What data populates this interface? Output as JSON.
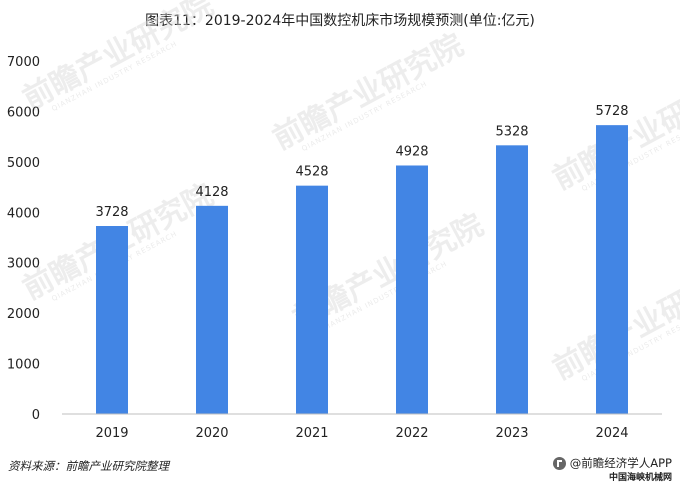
{
  "title": "图表11：2019-2024年中国数控机床市场规模预测(单位:亿元)",
  "footer": {
    "source": "资料来源：前瞻产业研究院整理",
    "brand": "@前瞻经济学人APP",
    "sub": "中国海峡机械网"
  },
  "watermark": {
    "text": "前瞻产业研究院",
    "sub": "QIANZHAN INDUSTRY RESEARCH"
  },
  "colors": {
    "bar": "#4285e4",
    "axis": "#bfbfbf",
    "text": "#222222"
  },
  "chart_data": {
    "type": "bar",
    "title": "图表11：2019-2024年中国数控机床市场规模预测(单位:亿元)",
    "categories": [
      "2019",
      "2020",
      "2021",
      "2022",
      "2023",
      "2024"
    ],
    "values": [
      3728,
      4128,
      4528,
      4928,
      5328,
      5728
    ],
    "ylim": [
      0,
      7000
    ],
    "yticks": [
      0,
      1000,
      2000,
      3000,
      4000,
      5000,
      6000,
      7000
    ],
    "xlabel": "",
    "ylabel": "",
    "grid": false,
    "data_labels": true
  }
}
